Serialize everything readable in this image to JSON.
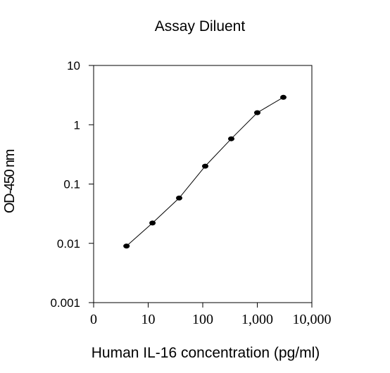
{
  "chart_data": {
    "type": "line",
    "title": "Assay Diluent",
    "xlabel": "Human IL-16 concentration (pg/ml)",
    "ylabel": "OD-450 nm",
    "x_scale": "log",
    "y_scale": "log",
    "xlim": [
      1,
      10000
    ],
    "ylim": [
      0.001,
      10
    ],
    "x_ticks": [
      {
        "value": 1,
        "label": "0"
      },
      {
        "value": 10,
        "label": "10"
      },
      {
        "value": 100,
        "label": "100"
      },
      {
        "value": 1000,
        "label": "1,000"
      },
      {
        "value": 10000,
        "label": "10,000"
      }
    ],
    "y_ticks": [
      {
        "value": 0.001,
        "label": "0.001"
      },
      {
        "value": 0.01,
        "label": "0.01"
      },
      {
        "value": 0.1,
        "label": "0.1"
      },
      {
        "value": 1,
        "label": "1"
      },
      {
        "value": 10,
        "label": "10"
      }
    ],
    "grid": false,
    "series": [
      {
        "x": [
          4,
          12,
          37,
          111,
          333,
          1000,
          3000
        ],
        "y": [
          0.009,
          0.022,
          0.058,
          0.2,
          0.58,
          1.6,
          2.9
        ]
      }
    ],
    "colors": {
      "line": "#000000",
      "marker": "#000000",
      "axis": "#000000"
    }
  }
}
